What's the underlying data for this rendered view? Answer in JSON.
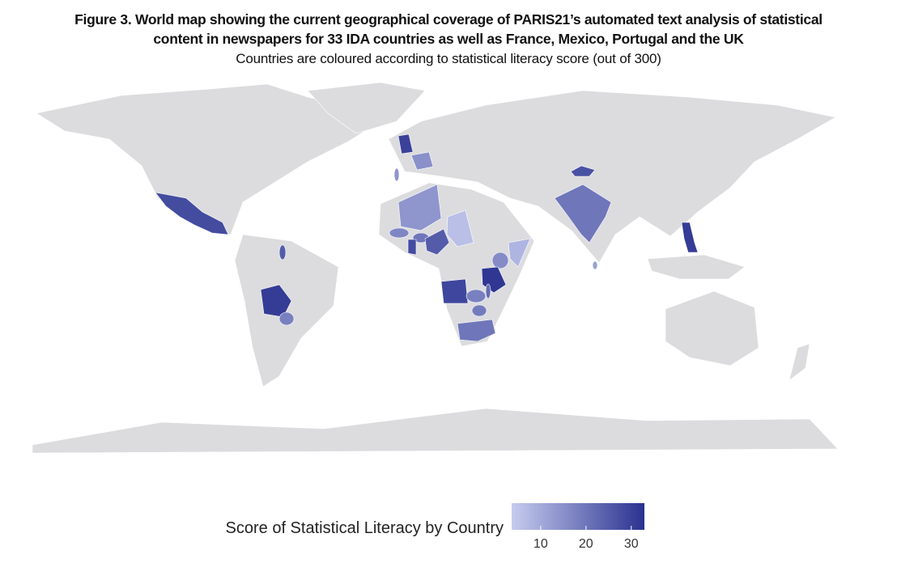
{
  "header": {
    "title_lines": [
      "Figure 3. World map showing the current geographical coverage of PARIS21’s automated text analysis of statistical",
      "content in newspapers for 33 IDA countries as well as France, Mexico, Portugal and the UK"
    ],
    "subtitle": "Countries are coloured according to statistical literacy score (out of 300)"
  },
  "map": {
    "scores": [
      30,
      15,
      14,
      28,
      31,
      18,
      25,
      14,
      17,
      20,
      25,
      28,
      6,
      8,
      16,
      32,
      29,
      18,
      22,
      20,
      19,
      20,
      12,
      27,
      31
    ]
  },
  "legend": {
    "title": "Score of Statistical Literacy by Country",
    "colors": [
      "#c6ccef",
      "#2a3290"
    ],
    "lim": [
      3.6,
      32.9
    ],
    "ticks": [
      10,
      20,
      30
    ]
  }
}
